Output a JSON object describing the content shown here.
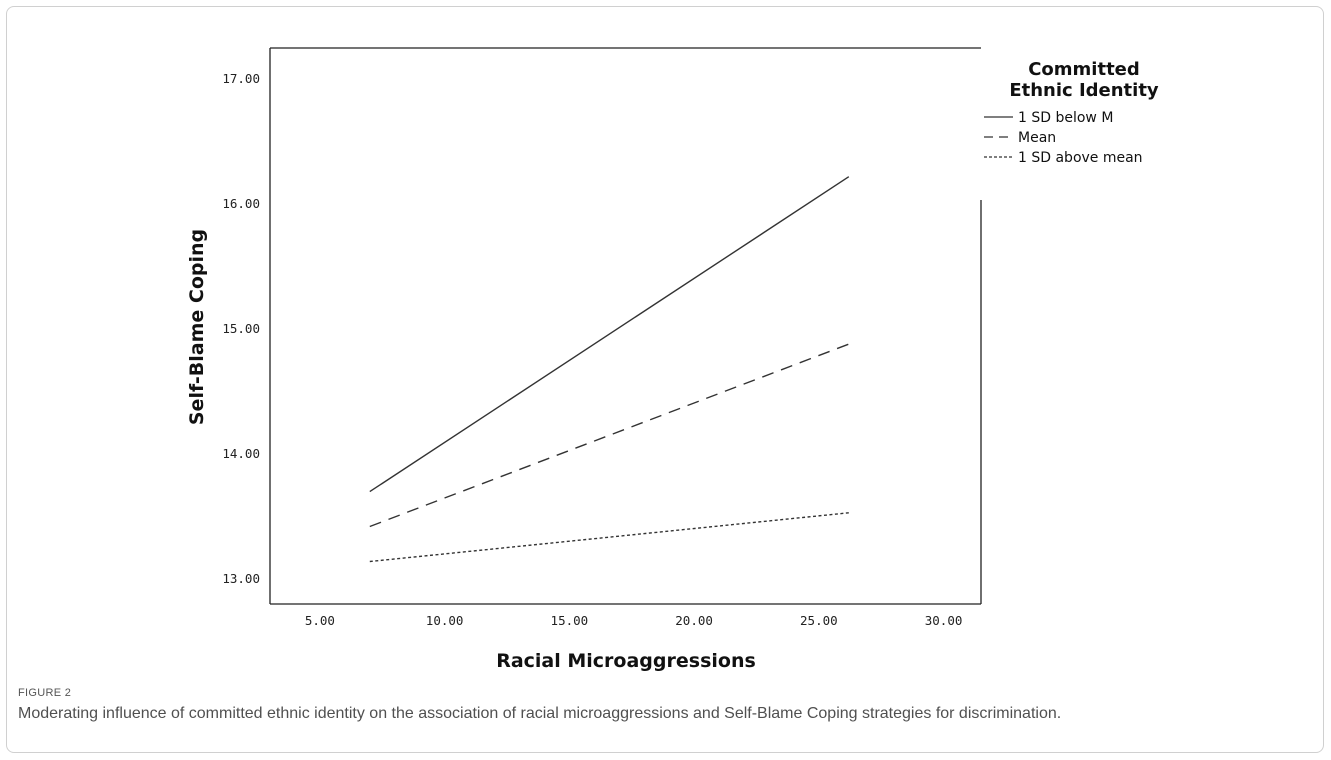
{
  "chart_data": {
    "type": "line",
    "xlabel": "Racial Microaggressions",
    "ylabel": "Self-Blame Coping",
    "xlim": [
      3.0,
      31.5
    ],
    "ylim": [
      12.8,
      17.25
    ],
    "x_ticks": [
      "5.00",
      "10.00",
      "15.00",
      "20.00",
      "25.00",
      "30.00"
    ],
    "y_ticks": [
      "13.00",
      "14.00",
      "15.00",
      "16.00",
      "17.00"
    ],
    "grid": false,
    "legend_title": [
      "Committed",
      "Ethnic Identity"
    ],
    "legend_position": "right",
    "series": [
      {
        "name": "1 SD below M",
        "style": "solid",
        "x": [
          7.0,
          26.2
        ],
        "y": [
          13.7,
          16.22
        ]
      },
      {
        "name": "Mean",
        "style": "dashed",
        "x": [
          7.0,
          26.2
        ],
        "y": [
          13.42,
          14.88
        ]
      },
      {
        "name": "1 SD above mean",
        "style": "dotted",
        "x": [
          7.0,
          26.2
        ],
        "y": [
          13.14,
          13.53
        ]
      }
    ]
  },
  "caption": {
    "label": "FIGURE 2",
    "text": "Moderating influence of committed ethnic identity on the association of racial microaggressions and Self-Blame Coping strategies for discrimination."
  }
}
